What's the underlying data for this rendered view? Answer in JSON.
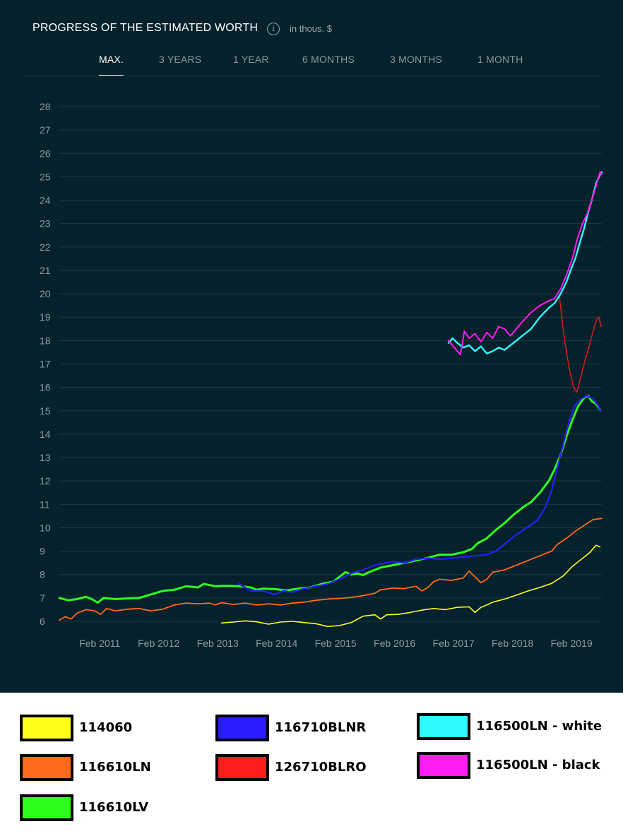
{
  "header": {
    "title": "PROGRESS OF THE ESTIMATED WORTH",
    "info_glyph": "i",
    "unit": "in thous. $"
  },
  "tabs": [
    {
      "label": "MAX.",
      "active": true
    },
    {
      "label": "3 YEARS",
      "active": false
    },
    {
      "label": "1 YEAR",
      "active": false
    },
    {
      "label": "6 MONTHS",
      "active": false
    },
    {
      "label": "3 MONTHS",
      "active": false
    },
    {
      "label": "1 MONTH",
      "active": false
    }
  ],
  "chart_data": {
    "type": "line",
    "title": "PROGRESS OF THE ESTIMATED WORTH",
    "xlabel": "",
    "ylabel": "in thous. $",
    "ylim": [
      5.8,
      28.5
    ],
    "xlim": [
      2010.55,
      2019.75
    ],
    "yticks": [
      6,
      7,
      8,
      9,
      10,
      11,
      12,
      13,
      14,
      15,
      16,
      17,
      18,
      19,
      20,
      21,
      22,
      23,
      24,
      25,
      26,
      27,
      28
    ],
    "xticks": [
      {
        "label": "Feb 2011",
        "x": 2011.08
      },
      {
        "label": "Feb 2012",
        "x": 2012.08
      },
      {
        "label": "Feb 2013",
        "x": 2013.08
      },
      {
        "label": "Feb 2014",
        "x": 2014.08
      },
      {
        "label": "Feb 2015",
        "x": 2015.08
      },
      {
        "label": "Feb 2016",
        "x": 2016.08
      },
      {
        "label": "Feb 2017",
        "x": 2017.08
      },
      {
        "label": "Feb 2018",
        "x": 2018.08
      },
      {
        "label": "Feb 2019",
        "x": 2019.08
      }
    ],
    "grid": true,
    "legend": "bottom",
    "series": [
      {
        "name": "114060",
        "color": "#ffff1a",
        "width": 1.6,
        "points": [
          [
            2013.3,
            5.93
          ],
          [
            2013.5,
            5.97
          ],
          [
            2013.7,
            6.02
          ],
          [
            2013.9,
            5.98
          ],
          [
            2014.1,
            5.88
          ],
          [
            2014.3,
            5.97
          ],
          [
            2014.5,
            6.0
          ],
          [
            2014.7,
            5.95
          ],
          [
            2014.9,
            5.9
          ],
          [
            2015.1,
            5.78
          ],
          [
            2015.3,
            5.82
          ],
          [
            2015.5,
            5.95
          ],
          [
            2015.7,
            6.22
          ],
          [
            2015.9,
            6.28
          ],
          [
            2016.0,
            6.1
          ],
          [
            2016.1,
            6.28
          ],
          [
            2016.3,
            6.3
          ],
          [
            2016.5,
            6.38
          ],
          [
            2016.7,
            6.48
          ],
          [
            2016.9,
            6.55
          ],
          [
            2017.1,
            6.5
          ],
          [
            2017.3,
            6.6
          ],
          [
            2017.5,
            6.62
          ],
          [
            2017.6,
            6.38
          ],
          [
            2017.7,
            6.6
          ],
          [
            2017.8,
            6.7
          ],
          [
            2017.9,
            6.82
          ],
          [
            2018.1,
            6.95
          ],
          [
            2018.3,
            7.12
          ],
          [
            2018.5,
            7.3
          ],
          [
            2018.7,
            7.45
          ],
          [
            2018.9,
            7.62
          ],
          [
            2019.1,
            7.95
          ],
          [
            2019.25,
            8.35
          ],
          [
            2019.4,
            8.65
          ],
          [
            2019.55,
            8.95
          ],
          [
            2019.65,
            9.25
          ],
          [
            2019.72,
            9.18
          ]
        ]
      },
      {
        "name": "116610LN",
        "color": "#ff6a1c",
        "width": 1.8,
        "points": [
          [
            2010.55,
            6.05
          ],
          [
            2010.65,
            6.2
          ],
          [
            2010.75,
            6.1
          ],
          [
            2010.85,
            6.35
          ],
          [
            2011.0,
            6.5
          ],
          [
            2011.15,
            6.45
          ],
          [
            2011.25,
            6.3
          ],
          [
            2011.35,
            6.55
          ],
          [
            2011.5,
            6.45
          ],
          [
            2011.7,
            6.52
          ],
          [
            2011.9,
            6.55
          ],
          [
            2012.1,
            6.45
          ],
          [
            2012.3,
            6.52
          ],
          [
            2012.5,
            6.7
          ],
          [
            2012.7,
            6.78
          ],
          [
            2012.9,
            6.75
          ],
          [
            2013.1,
            6.78
          ],
          [
            2013.2,
            6.7
          ],
          [
            2013.3,
            6.8
          ],
          [
            2013.5,
            6.72
          ],
          [
            2013.7,
            6.78
          ],
          [
            2013.9,
            6.7
          ],
          [
            2014.1,
            6.75
          ],
          [
            2014.3,
            6.7
          ],
          [
            2014.5,
            6.78
          ],
          [
            2014.7,
            6.82
          ],
          [
            2014.9,
            6.9
          ],
          [
            2015.1,
            6.95
          ],
          [
            2015.3,
            6.98
          ],
          [
            2015.5,
            7.02
          ],
          [
            2015.7,
            7.1
          ],
          [
            2015.9,
            7.2
          ],
          [
            2016.0,
            7.35
          ],
          [
            2016.2,
            7.42
          ],
          [
            2016.4,
            7.4
          ],
          [
            2016.6,
            7.5
          ],
          [
            2016.7,
            7.3
          ],
          [
            2016.8,
            7.45
          ],
          [
            2016.9,
            7.7
          ],
          [
            2017.0,
            7.8
          ],
          [
            2017.2,
            7.75
          ],
          [
            2017.4,
            7.85
          ],
          [
            2017.5,
            8.15
          ],
          [
            2017.6,
            7.9
          ],
          [
            2017.7,
            7.65
          ],
          [
            2017.8,
            7.8
          ],
          [
            2017.9,
            8.1
          ],
          [
            2018.1,
            8.2
          ],
          [
            2018.3,
            8.4
          ],
          [
            2018.5,
            8.6
          ],
          [
            2018.7,
            8.8
          ],
          [
            2018.9,
            9.0
          ],
          [
            2019.0,
            9.3
          ],
          [
            2019.15,
            9.55
          ],
          [
            2019.3,
            9.85
          ],
          [
            2019.45,
            10.1
          ],
          [
            2019.6,
            10.35
          ],
          [
            2019.75,
            10.4
          ]
        ]
      },
      {
        "name": "116610LV",
        "color": "#2dff1c",
        "width": 3,
        "points": [
          [
            2010.55,
            7.0
          ],
          [
            2010.7,
            6.9
          ],
          [
            2010.85,
            6.95
          ],
          [
            2011.0,
            7.05
          ],
          [
            2011.1,
            6.95
          ],
          [
            2011.2,
            6.8
          ],
          [
            2011.3,
            7.0
          ],
          [
            2011.5,
            6.95
          ],
          [
            2011.7,
            6.98
          ],
          [
            2011.9,
            7.0
          ],
          [
            2012.1,
            7.15
          ],
          [
            2012.3,
            7.3
          ],
          [
            2012.5,
            7.35
          ],
          [
            2012.7,
            7.5
          ],
          [
            2012.9,
            7.45
          ],
          [
            2013.0,
            7.6
          ],
          [
            2013.2,
            7.5
          ],
          [
            2013.4,
            7.52
          ],
          [
            2013.6,
            7.5
          ],
          [
            2013.8,
            7.45
          ],
          [
            2013.9,
            7.35
          ],
          [
            2014.0,
            7.4
          ],
          [
            2014.2,
            7.38
          ],
          [
            2014.4,
            7.32
          ],
          [
            2014.6,
            7.4
          ],
          [
            2014.8,
            7.45
          ],
          [
            2015.0,
            7.6
          ],
          [
            2015.2,
            7.7
          ],
          [
            2015.3,
            7.9
          ],
          [
            2015.4,
            8.1
          ],
          [
            2015.5,
            8.0
          ],
          [
            2015.6,
            8.05
          ],
          [
            2015.7,
            7.98
          ],
          [
            2015.8,
            8.1
          ],
          [
            2016.0,
            8.3
          ],
          [
            2016.2,
            8.4
          ],
          [
            2016.4,
            8.5
          ],
          [
            2016.6,
            8.6
          ],
          [
            2016.8,
            8.72
          ],
          [
            2017.0,
            8.85
          ],
          [
            2017.2,
            8.85
          ],
          [
            2017.4,
            8.95
          ],
          [
            2017.55,
            9.1
          ],
          [
            2017.65,
            9.35
          ],
          [
            2017.8,
            9.55
          ],
          [
            2017.95,
            9.9
          ],
          [
            2018.1,
            10.2
          ],
          [
            2018.25,
            10.55
          ],
          [
            2018.4,
            10.85
          ],
          [
            2018.55,
            11.1
          ],
          [
            2018.7,
            11.5
          ],
          [
            2018.85,
            12.0
          ],
          [
            2018.95,
            12.5
          ],
          [
            2019.05,
            13.1
          ],
          [
            2019.15,
            13.9
          ],
          [
            2019.25,
            14.6
          ],
          [
            2019.35,
            15.2
          ],
          [
            2019.45,
            15.55
          ],
          [
            2019.52,
            15.65
          ],
          [
            2019.58,
            15.4
          ],
          [
            2019.65,
            15.3
          ],
          [
            2019.72,
            15.05
          ]
        ]
      },
      {
        "name": "116710BLNR",
        "color": "#2a1cff",
        "width": 2.2,
        "points": [
          [
            2013.6,
            7.6
          ],
          [
            2013.7,
            7.45
          ],
          [
            2013.8,
            7.3
          ],
          [
            2014.0,
            7.3
          ],
          [
            2014.2,
            7.15
          ],
          [
            2014.35,
            7.3
          ],
          [
            2014.5,
            7.25
          ],
          [
            2014.7,
            7.4
          ],
          [
            2014.9,
            7.5
          ],
          [
            2015.1,
            7.6
          ],
          [
            2015.3,
            7.8
          ],
          [
            2015.5,
            8.05
          ],
          [
            2015.7,
            8.2
          ],
          [
            2015.9,
            8.4
          ],
          [
            2016.0,
            8.45
          ],
          [
            2016.2,
            8.55
          ],
          [
            2016.4,
            8.5
          ],
          [
            2016.6,
            8.65
          ],
          [
            2016.8,
            8.7
          ],
          [
            2017.0,
            8.65
          ],
          [
            2017.2,
            8.7
          ],
          [
            2017.4,
            8.75
          ],
          [
            2017.6,
            8.8
          ],
          [
            2017.8,
            8.85
          ],
          [
            2017.95,
            9.0
          ],
          [
            2018.1,
            9.3
          ],
          [
            2018.3,
            9.7
          ],
          [
            2018.5,
            10.05
          ],
          [
            2018.65,
            10.3
          ],
          [
            2018.8,
            10.9
          ],
          [
            2018.9,
            11.6
          ],
          [
            2019.0,
            12.6
          ],
          [
            2019.1,
            13.6
          ],
          [
            2019.2,
            14.6
          ],
          [
            2019.3,
            15.25
          ],
          [
            2019.4,
            15.5
          ],
          [
            2019.5,
            15.65
          ],
          [
            2019.6,
            15.5
          ],
          [
            2019.68,
            15.25
          ],
          [
            2019.73,
            15.0
          ]
        ]
      },
      {
        "name": "126710BLRO",
        "color": "#d41a1a",
        "width": 1.6,
        "points": [
          [
            2019.03,
            19.9
          ],
          [
            2019.1,
            18.4
          ],
          [
            2019.15,
            17.5
          ],
          [
            2019.2,
            16.8
          ],
          [
            2019.27,
            16.0
          ],
          [
            2019.33,
            15.8
          ],
          [
            2019.38,
            16.3
          ],
          [
            2019.43,
            16.8
          ],
          [
            2019.48,
            17.3
          ],
          [
            2019.53,
            17.7
          ],
          [
            2019.58,
            18.2
          ],
          [
            2019.62,
            18.55
          ],
          [
            2019.66,
            18.9
          ],
          [
            2019.7,
            19.0
          ],
          [
            2019.74,
            18.6
          ]
        ]
      },
      {
        "name": "116500LN - white",
        "color": "#2dfaff",
        "width": 2.4,
        "points": [
          [
            2017.15,
            17.9
          ],
          [
            2017.22,
            18.1
          ],
          [
            2017.3,
            17.9
          ],
          [
            2017.4,
            17.7
          ],
          [
            2017.5,
            17.8
          ],
          [
            2017.6,
            17.55
          ],
          [
            2017.7,
            17.75
          ],
          [
            2017.8,
            17.45
          ],
          [
            2017.9,
            17.55
          ],
          [
            2018.0,
            17.7
          ],
          [
            2018.1,
            17.6
          ],
          [
            2018.2,
            17.8
          ],
          [
            2018.3,
            18.0
          ],
          [
            2018.4,
            18.2
          ],
          [
            2018.55,
            18.5
          ],
          [
            2018.7,
            19.0
          ],
          [
            2018.85,
            19.4
          ],
          [
            2018.95,
            19.6
          ],
          [
            2019.05,
            20.0
          ],
          [
            2019.15,
            20.5
          ],
          [
            2019.22,
            21.0
          ],
          [
            2019.3,
            21.5
          ],
          [
            2019.38,
            22.2
          ],
          [
            2019.45,
            22.8
          ],
          [
            2019.52,
            23.5
          ],
          [
            2019.58,
            24.0
          ],
          [
            2019.65,
            24.7
          ],
          [
            2019.72,
            25.1
          ],
          [
            2019.75,
            25.2
          ]
        ]
      },
      {
        "name": "116500LN - black",
        "color": "#ff1cf5",
        "width": 2.0,
        "points": [
          [
            2017.15,
            18.0
          ],
          [
            2017.25,
            17.7
          ],
          [
            2017.35,
            17.4
          ],
          [
            2017.42,
            18.4
          ],
          [
            2017.5,
            18.1
          ],
          [
            2017.6,
            18.3
          ],
          [
            2017.7,
            17.95
          ],
          [
            2017.8,
            18.35
          ],
          [
            2017.9,
            18.1
          ],
          [
            2018.0,
            18.6
          ],
          [
            2018.1,
            18.5
          ],
          [
            2018.2,
            18.2
          ],
          [
            2018.3,
            18.5
          ],
          [
            2018.4,
            18.8
          ],
          [
            2018.55,
            19.2
          ],
          [
            2018.7,
            19.5
          ],
          [
            2018.85,
            19.7
          ],
          [
            2018.95,
            19.8
          ],
          [
            2019.05,
            20.2
          ],
          [
            2019.15,
            20.8
          ],
          [
            2019.25,
            21.5
          ],
          [
            2019.33,
            22.3
          ],
          [
            2019.42,
            23.0
          ],
          [
            2019.5,
            23.4
          ],
          [
            2019.58,
            24.0
          ],
          [
            2019.65,
            24.6
          ],
          [
            2019.72,
            25.2
          ],
          [
            2019.75,
            25.1
          ]
        ]
      }
    ]
  },
  "legend": [
    {
      "label": "114060",
      "color": "#ffff1a"
    },
    {
      "label": "116610LN",
      "color": "#ff6a1c"
    },
    {
      "label": "116610LV",
      "color": "#2dff1c"
    },
    {
      "label": "116710BLNR",
      "color": "#2a1cff"
    },
    {
      "label": "126710BLRO",
      "color": "#ff1c1c"
    },
    {
      "label": "116500LN - white",
      "color": "#2dfaff"
    },
    {
      "label": "116500LN - black",
      "color": "#ff1cf5"
    }
  ]
}
